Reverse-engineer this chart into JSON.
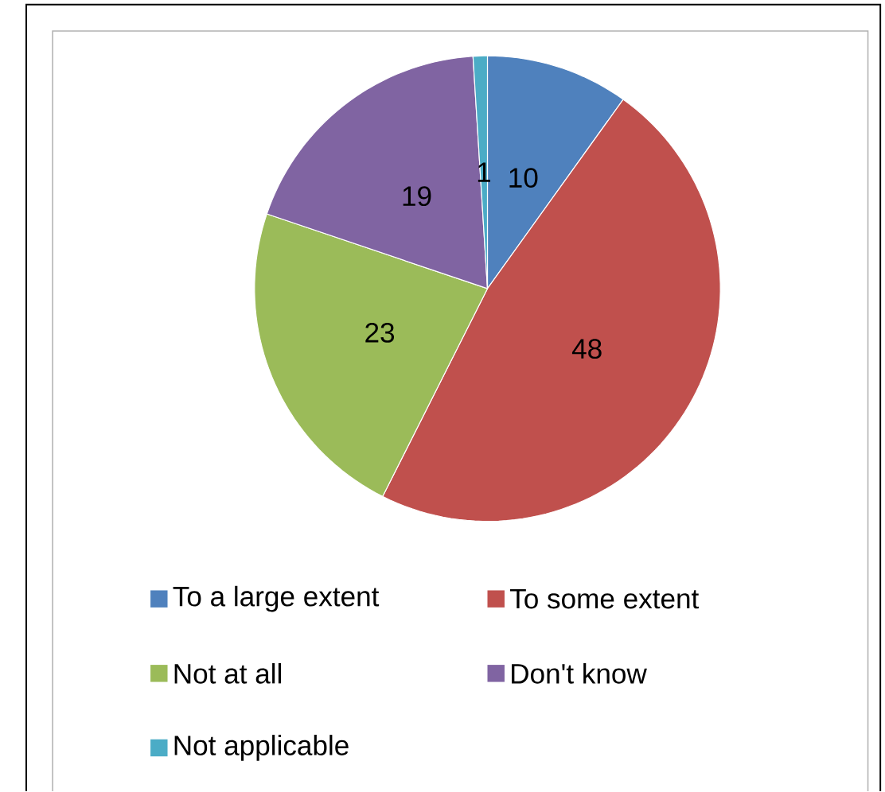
{
  "chart_data": {
    "type": "pie",
    "categories": [
      "To a large extent",
      "To some extent",
      "Not at all",
      "Don't know",
      "Not applicable"
    ],
    "values": [
      10,
      48,
      23,
      19,
      1
    ],
    "colors": [
      "#4f81bd",
      "#c0504d",
      "#9bbb59",
      "#8064a2",
      "#4bacc6"
    ],
    "data_labels": true,
    "legend": "bottom"
  }
}
